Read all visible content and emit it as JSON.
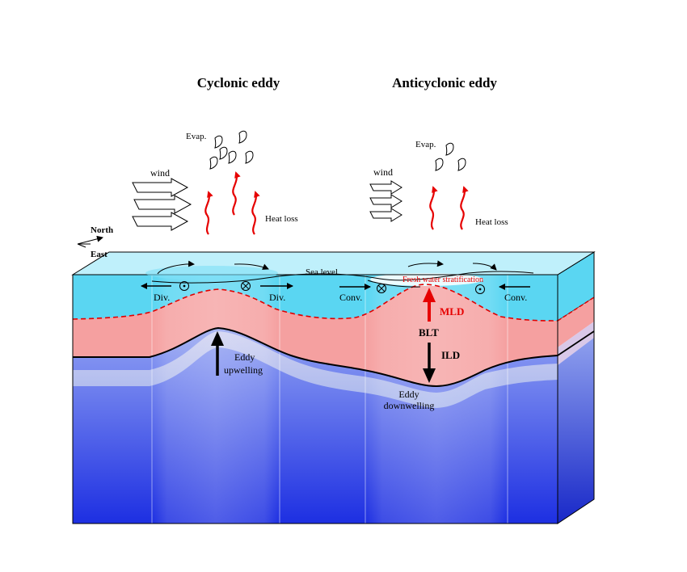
{
  "titles": {
    "cyclonic": "Cyclonic eddy",
    "anticyclonic": "Anticyclonic eddy"
  },
  "atmosphere": {
    "wind_left": "wind",
    "wind_right": "wind",
    "evap_left": "Evap.",
    "evap_right": "Evap.",
    "heat_loss_left": "Heat loss",
    "heat_loss_right": "Heat loss"
  },
  "compass": {
    "north": "North",
    "east": "East"
  },
  "surface": {
    "sea_level": "Sea level",
    "fresh_water": "Fresh water stratification",
    "div_1": "Div.",
    "div_2": "Div.",
    "conv_1": "Conv.",
    "conv_2": "Conv."
  },
  "layers": {
    "mld": "MLD",
    "blt": "BLT",
    "ild": "ILD"
  },
  "eddy_motion": {
    "upwelling_1": "Eddy",
    "upwelling_2": "upwelling",
    "downwelling_1": "Eddy",
    "downwelling_2": "downwelling"
  },
  "colors": {
    "mixed_layer": "#59d4f0",
    "barrier_layer": "#f5a0a0",
    "deep_top": "#a9b8ea",
    "deep_bottom": "#1c2ee0",
    "heat_arrow": "#e60000",
    "top_face": "#bff0fb"
  },
  "icons": {
    "heat": "wavy-up-arrow-icon",
    "evaporation": "droplet-icon",
    "wind": "hollow-arrow-icon",
    "out_of_page": "dot-circle-icon",
    "into_page": "cross-circle-icon"
  }
}
